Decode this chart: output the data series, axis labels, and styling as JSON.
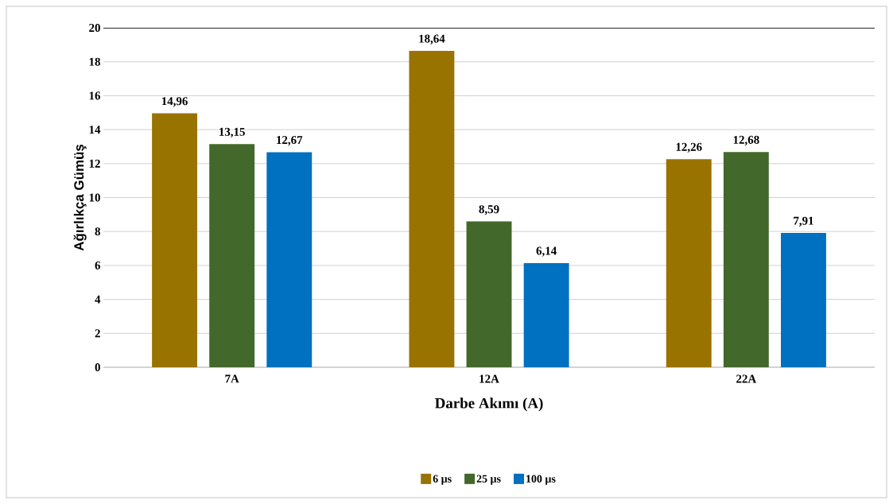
{
  "chart_data": {
    "type": "bar",
    "xlabel": "Darbe Akımı (A)",
    "ylabel": "Ağırlıkça Gümüş",
    "categories": [
      "7A",
      "12A",
      "22A"
    ],
    "series": [
      {
        "name": "6 µs",
        "color": "#997300",
        "values": [
          14.96,
          18.64,
          12.26
        ],
        "value_labels": [
          "14,96",
          "18,64",
          "12,26"
        ]
      },
      {
        "name": "25 µs",
        "color": "#43682b",
        "values": [
          13.15,
          8.59,
          12.68
        ],
        "value_labels": [
          "13,15",
          "8,59",
          "12,68"
        ]
      },
      {
        "name": "100 µs",
        "color": "#0070c0",
        "values": [
          12.67,
          6.14,
          7.91
        ],
        "value_labels": [
          "12,67",
          "6,14",
          "7,91"
        ]
      }
    ],
    "ylim": [
      0,
      20
    ],
    "yticks": [
      0,
      2,
      4,
      6,
      8,
      10,
      12,
      14,
      16,
      18,
      20
    ],
    "grid": "y",
    "legend": "bottom",
    "ref_lines": [
      {
        "axis": "y",
        "value": 20,
        "color": "#000000"
      }
    ]
  }
}
